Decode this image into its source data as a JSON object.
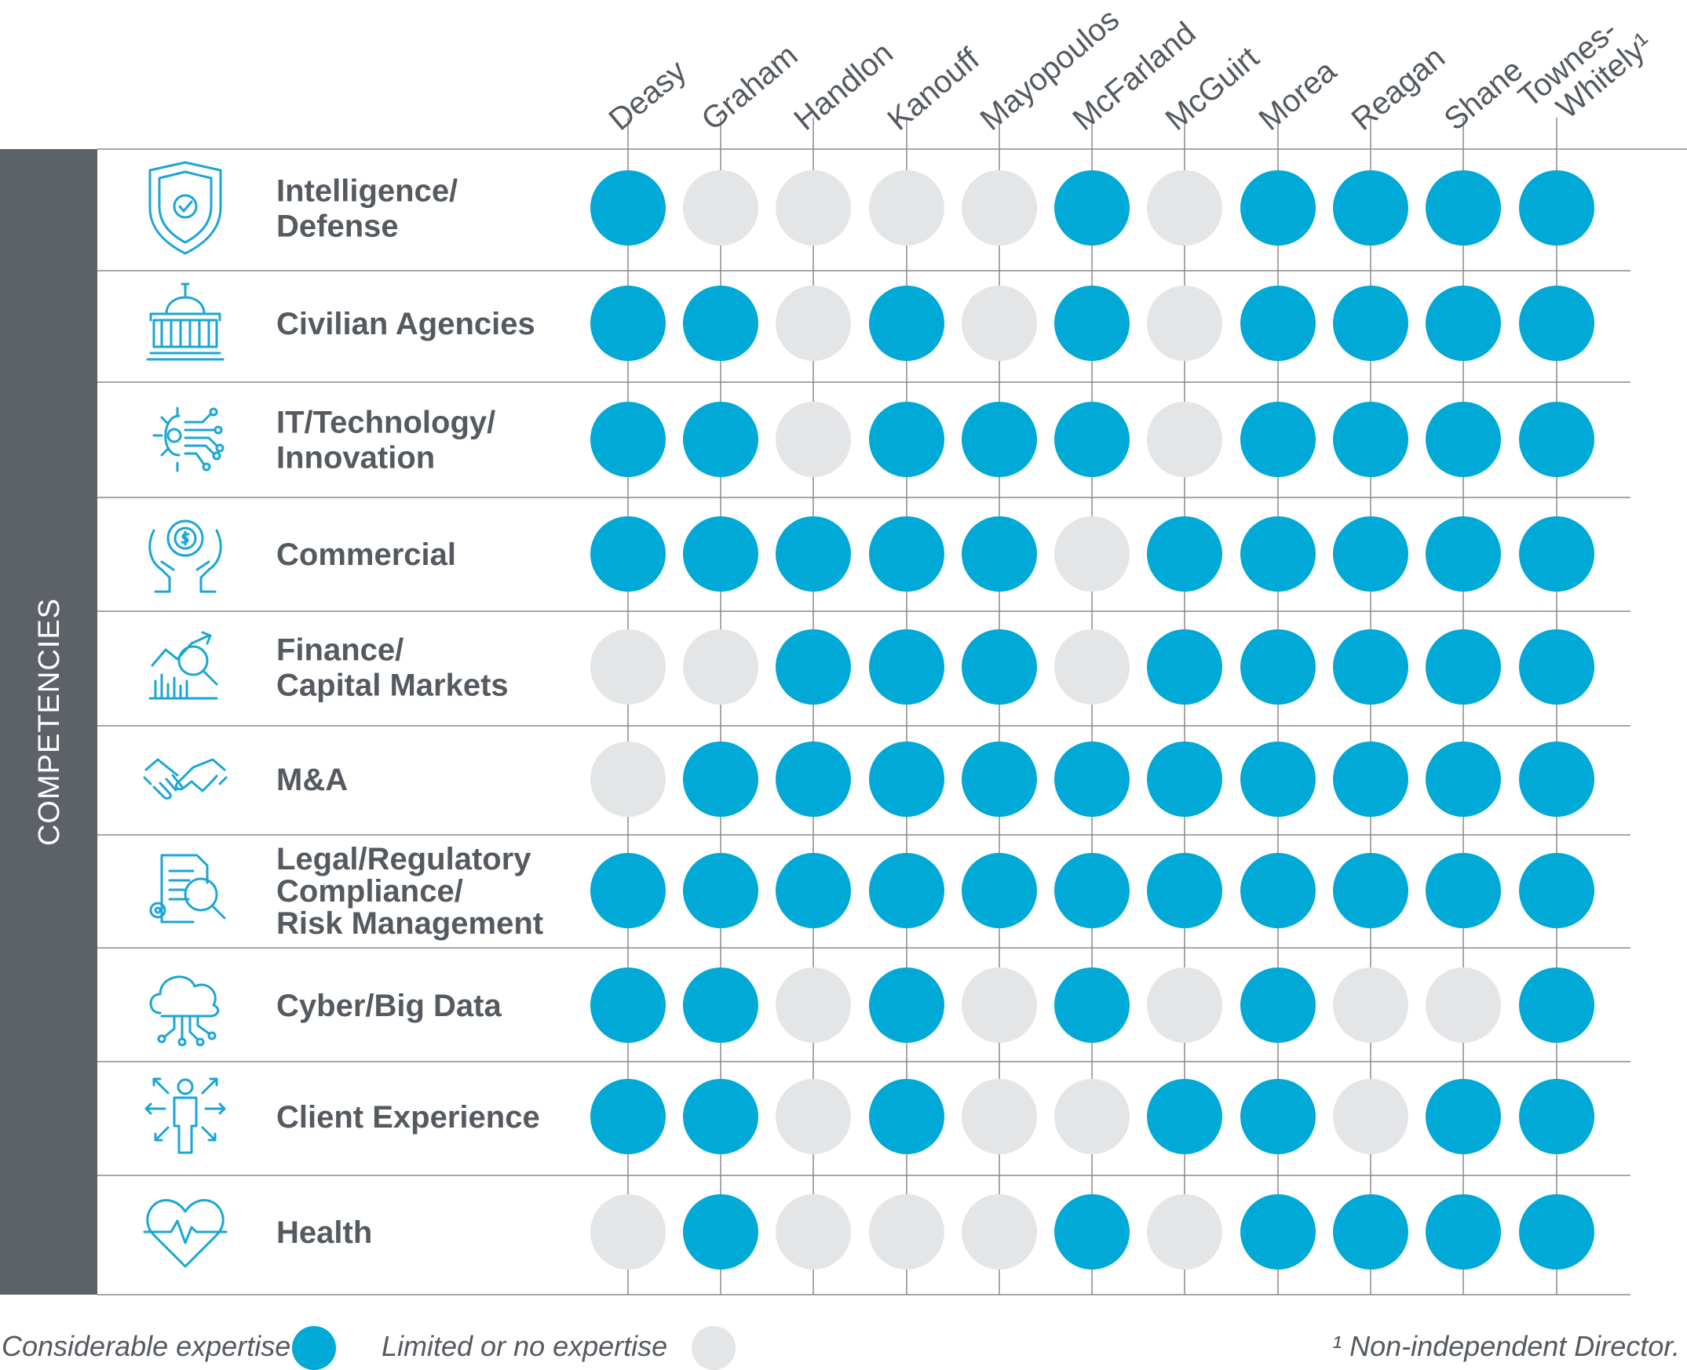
{
  "colors": {
    "considerable": "#00a9d6",
    "limited": "#e4e5e7",
    "sidebar": "#5d6269",
    "text": "#555a60",
    "grid": "#8a8a8a",
    "icon": "#1aa6d6"
  },
  "sidebar_label": "COMPETENCIES",
  "chart_data": {
    "type": "table",
    "title": "",
    "directors": [
      "Deasy",
      "Graham",
      "Handlon",
      "Kanouff",
      "Mayopoulos",
      "McFarland",
      "McGuirt",
      "Morea",
      "Reagan",
      "Shane",
      "Townes-Whitely¹"
    ],
    "competencies": [
      {
        "label": [
          "Intelligence/",
          "Defense"
        ],
        "icon": "shield-check-icon",
        "values": [
          1,
          0,
          0,
          0,
          0,
          1,
          0,
          1,
          1,
          1,
          1
        ]
      },
      {
        "label": [
          "Civilian Agencies"
        ],
        "icon": "capitol-building-icon",
        "values": [
          1,
          1,
          0,
          1,
          0,
          1,
          0,
          1,
          1,
          1,
          1
        ]
      },
      {
        "label": [
          "IT/Technology/",
          "Innovation"
        ],
        "icon": "circuit-gear-icon",
        "values": [
          1,
          1,
          0,
          1,
          1,
          1,
          0,
          1,
          1,
          1,
          1
        ]
      },
      {
        "label": [
          "Commercial"
        ],
        "icon": "hands-gear-dollar-icon",
        "values": [
          1,
          1,
          1,
          1,
          1,
          0,
          1,
          1,
          1,
          1,
          1
        ]
      },
      {
        "label": [
          "Finance/",
          "Capital Markets"
        ],
        "icon": "chart-magnifier-icon",
        "values": [
          0,
          0,
          1,
          1,
          1,
          0,
          1,
          1,
          1,
          1,
          1
        ]
      },
      {
        "label": [
          "M&A"
        ],
        "icon": "handshake-icon",
        "values": [
          0,
          1,
          1,
          1,
          1,
          1,
          1,
          1,
          1,
          1,
          1
        ]
      },
      {
        "label": [
          "Legal/Regulatory",
          "Compliance/",
          "Risk Management"
        ],
        "icon": "document-search-icon",
        "values": [
          1,
          1,
          1,
          1,
          1,
          1,
          1,
          1,
          1,
          1,
          1
        ]
      },
      {
        "label": [
          "Cyber/Big Data"
        ],
        "icon": "cloud-circuit-icon",
        "values": [
          1,
          1,
          0,
          1,
          0,
          1,
          0,
          1,
          0,
          0,
          1
        ]
      },
      {
        "label": [
          "Client Experience"
        ],
        "icon": "person-arrows-icon",
        "values": [
          1,
          1,
          0,
          1,
          0,
          0,
          1,
          1,
          0,
          1,
          1
        ]
      },
      {
        "label": [
          "Health"
        ],
        "icon": "heart-pulse-icon",
        "values": [
          0,
          1,
          0,
          0,
          0,
          1,
          0,
          1,
          1,
          1,
          1
        ]
      }
    ],
    "legend": [
      {
        "label": "Considerable expertise",
        "value": 1
      },
      {
        "label": "Limited or no expertise",
        "value": 0
      }
    ],
    "footnote": "¹ Non-independent Director."
  }
}
